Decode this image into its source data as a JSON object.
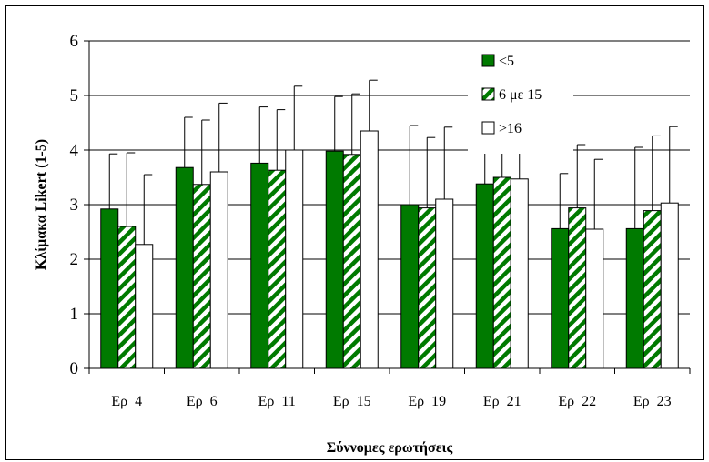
{
  "chart_data": {
    "type": "bar",
    "xlabel": "Σύννομες ερωτήσεις",
    "ylabel": "Κλίμακα Likert (1-5)",
    "ylim": [
      0,
      6
    ],
    "yticks": [
      0,
      1,
      2,
      3,
      4,
      5,
      6
    ],
    "grid": true,
    "legend_position": "top-right",
    "categories": [
      "Ερ_4",
      "Ερ_6",
      "Ερ_11",
      "Ερ_15",
      "Ερ_19",
      "Ερ_21",
      "Ερ_22",
      "Ερ_23"
    ],
    "series": [
      {
        "name": "<5",
        "pattern": "solid",
        "color": "#007a00",
        "values": [
          2.92,
          3.68,
          3.76,
          3.98,
          3.0,
          3.38,
          2.56,
          2.56
        ],
        "error_upper": [
          3.93,
          4.6,
          4.79,
          4.98,
          4.45,
          4.17,
          3.57,
          4.05
        ]
      },
      {
        "name": "6 με 15",
        "pattern": "diagonal-stripes",
        "color": "#007a00",
        "values": [
          2.6,
          3.37,
          3.63,
          3.92,
          2.94,
          3.5,
          2.94,
          2.89
        ],
        "error_upper": [
          3.95,
          4.55,
          4.74,
          5.03,
          4.23,
          4.25,
          4.1,
          4.26
        ]
      },
      {
        "name": ">16",
        "pattern": "empty",
        "color": "#ffffff",
        "values": [
          2.27,
          3.6,
          4.0,
          4.35,
          3.1,
          3.47,
          2.55,
          3.03
        ],
        "error_upper": [
          3.55,
          4.86,
          5.17,
          5.28,
          4.42,
          4.2,
          3.83,
          4.43
        ]
      }
    ]
  }
}
